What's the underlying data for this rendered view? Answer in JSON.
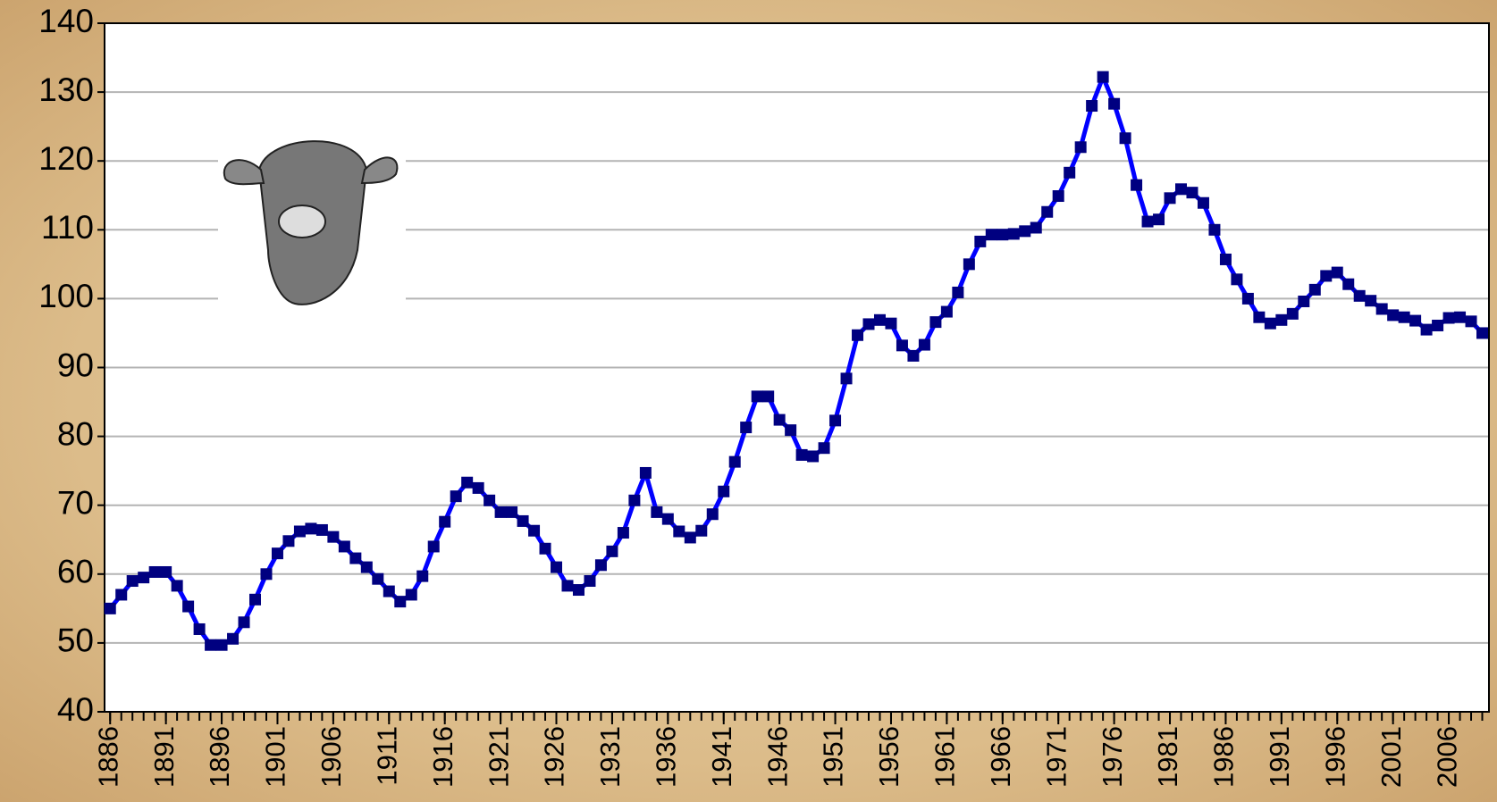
{
  "chart_data": {
    "type": "line",
    "x": [
      1886,
      1887,
      1888,
      1889,
      1890,
      1891,
      1892,
      1893,
      1894,
      1895,
      1896,
      1897,
      1898,
      1899,
      1900,
      1901,
      1902,
      1903,
      1904,
      1905,
      1906,
      1907,
      1908,
      1909,
      1910,
      1911,
      1912,
      1913,
      1914,
      1915,
      1916,
      1917,
      1918,
      1919,
      1920,
      1921,
      1922,
      1923,
      1924,
      1925,
      1926,
      1927,
      1928,
      1929,
      1930,
      1931,
      1932,
      1933,
      1934,
      1935,
      1936,
      1937,
      1938,
      1939,
      1940,
      1941,
      1942,
      1943,
      1944,
      1945,
      1946,
      1947,
      1948,
      1949,
      1950,
      1951,
      1952,
      1953,
      1954,
      1955,
      1956,
      1957,
      1958,
      1959,
      1960,
      1961,
      1962,
      1963,
      1964,
      1965,
      1966,
      1967,
      1968,
      1969,
      1970,
      1971,
      1972,
      1973,
      1974,
      1975,
      1976,
      1977,
      1978,
      1979,
      1980,
      1981,
      1982,
      1983,
      1984,
      1985,
      1986,
      1987,
      1988,
      1989,
      1990,
      1991,
      1992,
      1993,
      1994,
      1995,
      1996,
      1997,
      1998,
      1999,
      2000,
      2001,
      2002,
      2003,
      2004,
      2005,
      2006,
      2007,
      2008,
      2009
    ],
    "series": [
      {
        "color": "#0000ff",
        "marker_color": "#000080",
        "values": [
          55,
          57,
          59,
          59.5,
          60.3,
          60.3,
          58.3,
          55.3,
          52,
          49.7,
          49.7,
          50.6,
          53,
          56.3,
          60,
          63,
          64.8,
          66.2,
          66.6,
          66.4,
          65.4,
          64,
          62.3,
          61,
          59.3,
          57.5,
          56,
          57,
          59.7,
          64,
          67.6,
          71.3,
          73.3,
          72.5,
          70.7,
          69,
          69,
          67.7,
          66.3,
          63.7,
          61,
          58.3,
          57.7,
          59,
          61.3,
          63.3,
          66,
          70.7,
          74.7,
          69,
          68,
          66.2,
          65.3,
          66.3,
          68.7,
          72,
          76.3,
          81.3,
          85.8,
          85.8,
          82.4,
          80.9,
          77.3,
          77.1,
          78.3,
          82.3,
          88.4,
          94.7,
          96.3,
          96.9,
          96.4,
          93.2,
          91.7,
          93.3,
          96.6,
          98.1,
          100.9,
          105,
          108.3,
          109.3,
          109.3,
          109.4,
          109.8,
          110.3,
          112.6,
          114.9,
          118.3,
          122,
          128,
          132.2,
          128.3,
          123.3,
          116.5,
          111.2,
          111.5,
          114.6,
          115.9,
          115.4,
          113.9,
          110,
          105.7,
          102.8,
          100,
          97.3,
          96.4,
          96.9,
          97.8,
          99.6,
          101.3,
          103.3,
          103.8,
          102.1,
          100.4,
          99.7,
          98.5,
          97.6,
          97.3,
          96.8,
          95.5,
          96.1,
          97.2,
          97.3,
          96.7,
          95
        ]
      }
    ],
    "xlim": [
      1885.5,
      2009.6
    ],
    "xticks": [
      1886,
      1891,
      1896,
      1901,
      1906,
      1911,
      1916,
      1921,
      1926,
      1931,
      1936,
      1941,
      1946,
      1951,
      1956,
      1961,
      1966,
      1971,
      1976,
      1981,
      1986,
      1991,
      1996,
      2001,
      2006
    ],
    "ylim": [
      40,
      140
    ],
    "yticks": [
      40,
      50,
      60,
      70,
      80,
      90,
      100,
      110,
      120,
      130,
      140
    ],
    "grid": true
  }
}
